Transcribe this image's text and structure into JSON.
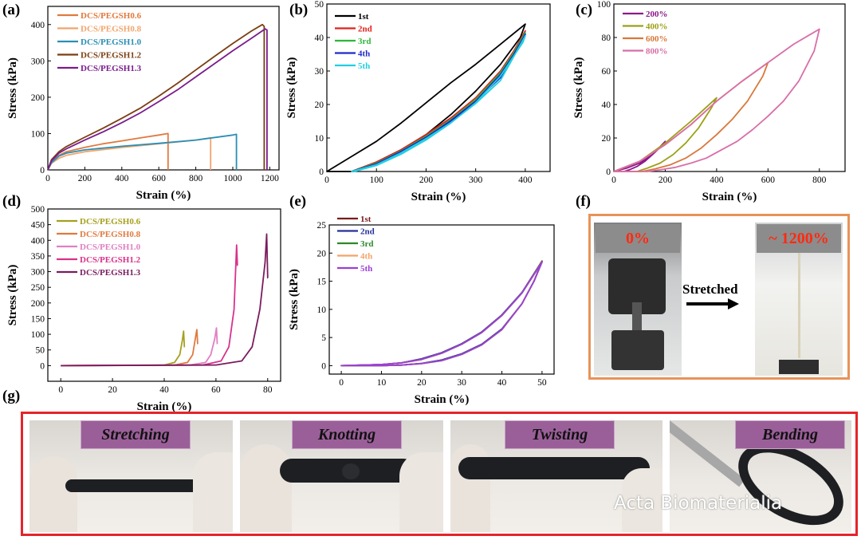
{
  "panel_labels": {
    "a": "(a)",
    "b": "(b)",
    "c": "(c)",
    "d": "(d)",
    "e": "(e)",
    "f": "(f)",
    "g": "(g)"
  },
  "colors": {
    "peg06_a": "#E07A3F",
    "peg08_a": "#F2A46B",
    "peg10_a": "#2A8FB5",
    "peg12_a": "#7B3F12",
    "peg13_a": "#7A1C8C",
    "peg06_d": "#A6A01E",
    "peg08_d": "#E07A3F",
    "peg10_d": "#E07FC2",
    "peg12_d": "#D8328A",
    "peg13_d": "#7A1C5E",
    "c1": "#000000",
    "c2": "#E0211B",
    "c3": "#2DB83A",
    "c4": "#1F2BC9",
    "c5": "#22CFE0",
    "e1": "#7B1A1A",
    "e2": "#24309A",
    "e3": "#2A8A2A",
    "e4": "#F2A46B",
    "e5": "#9B3FD6",
    "s200": "#8B1A8B",
    "s400": "#9BA018",
    "s600": "#D8783A",
    "s800": "#D86FA8",
    "f_border": "#E8935A",
    "g_border": "#e5242a",
    "g_tag": "#9a5f99"
  },
  "chart_data": [
    {
      "id": "a",
      "type": "line",
      "title": "",
      "xlabel": "Strain (%)",
      "ylabel": "Stress (kPa)",
      "xlim": [
        0,
        1250
      ],
      "ylim": [
        0,
        450
      ],
      "xticks": [
        0,
        200,
        400,
        600,
        800,
        1000,
        1200
      ],
      "yticks": [
        0,
        100,
        200,
        300,
        400
      ],
      "legend_position": "top-left",
      "series": [
        {
          "name": "DCS/PEGSH0.6",
          "color_key": "peg06_a",
          "x": [
            0,
            20,
            60,
            100,
            200,
            300,
            400,
            500,
            600,
            650,
            650
          ],
          "y": [
            0,
            22,
            40,
            50,
            62,
            72,
            80,
            88,
            96,
            100,
            0
          ]
        },
        {
          "name": "DCS/PEGSH0.8",
          "color_key": "peg08_a",
          "x": [
            0,
            20,
            60,
            100,
            200,
            400,
            600,
            800,
            880,
            880
          ],
          "y": [
            0,
            18,
            32,
            40,
            50,
            62,
            72,
            82,
            88,
            0
          ]
        },
        {
          "name": "DCS/PEGSH1.0",
          "color_key": "peg10_a",
          "x": [
            0,
            20,
            60,
            100,
            200,
            400,
            600,
            800,
            1000,
            1020,
            1020
          ],
          "y": [
            0,
            20,
            38,
            46,
            55,
            65,
            73,
            82,
            96,
            98,
            0
          ]
        },
        {
          "name": "DCS/PEGSH1.2",
          "color_key": "peg12_a",
          "x": [
            0,
            20,
            60,
            100,
            200,
            300,
            400,
            500,
            600,
            700,
            800,
            900,
            1000,
            1100,
            1160,
            1170,
            1170
          ],
          "y": [
            0,
            28,
            50,
            64,
            90,
            115,
            142,
            170,
            203,
            238,
            275,
            312,
            348,
            382,
            400,
            395,
            0
          ]
        },
        {
          "name": "DCS/PEGSH1.3",
          "color_key": "peg13_a",
          "x": [
            0,
            20,
            60,
            100,
            200,
            300,
            400,
            500,
            600,
            700,
            800,
            900,
            1000,
            1100,
            1175,
            1185,
            1185
          ],
          "y": [
            0,
            25,
            46,
            58,
            82,
            105,
            130,
            157,
            188,
            220,
            256,
            292,
            328,
            362,
            388,
            385,
            0
          ]
        }
      ]
    },
    {
      "id": "b",
      "type": "line",
      "title": "",
      "xlabel": "Strain (%)",
      "ylabel": "Stress (kPa)",
      "xlim": [
        0,
        450
      ],
      "ylim": [
        0,
        50
      ],
      "xticks": [
        0,
        100,
        200,
        300,
        400
      ],
      "yticks": [
        0,
        10,
        20,
        30,
        40,
        50
      ],
      "legend_position": "top-left",
      "series": [
        {
          "name": "1st",
          "color_key": "c1",
          "x": [
            0,
            50,
            100,
            150,
            200,
            250,
            300,
            350,
            400,
            390,
            350,
            300,
            250,
            200,
            150,
            100,
            50
          ],
          "y": [
            0,
            4.5,
            9,
            14.5,
            20.5,
            26.5,
            32,
            38,
            44,
            40,
            32,
            24,
            17,
            11,
            6.5,
            2.8,
            0
          ],
          "closed": true
        },
        {
          "name": "2nd",
          "color_key": "c2",
          "x": [
            50,
            100,
            150,
            200,
            250,
            300,
            350,
            400,
            395,
            350,
            300,
            250,
            200,
            150,
            100,
            55
          ],
          "y": [
            0,
            2.8,
            6.5,
            11,
            16,
            22,
            29,
            42,
            40,
            30,
            22,
            16,
            10.5,
            6,
            2.5,
            0
          ],
          "closed": true
        },
        {
          "name": "3rd",
          "color_key": "c3",
          "x": [
            50,
            100,
            150,
            200,
            250,
            300,
            350,
            400,
            395,
            350,
            300,
            250,
            200,
            150,
            100,
            55
          ],
          "y": [
            0,
            2.5,
            6.2,
            10.5,
            15.5,
            21.5,
            28.5,
            41.5,
            39.5,
            29.5,
            21.5,
            15.5,
            10,
            5.8,
            2.3,
            0
          ],
          "closed": true
        },
        {
          "name": "4th",
          "color_key": "c4",
          "x": [
            50,
            100,
            150,
            200,
            250,
            300,
            350,
            400,
            395,
            350,
            300,
            250,
            200,
            150,
            100,
            55
          ],
          "y": [
            0,
            2.3,
            6,
            10.2,
            15.2,
            21,
            28,
            41,
            39,
            29,
            21,
            15,
            9.8,
            5.6,
            2.1,
            0
          ],
          "closed": true
        },
        {
          "name": "5th",
          "color_key": "c5",
          "x": [
            50,
            100,
            150,
            200,
            250,
            300,
            350,
            400,
            395,
            350,
            300,
            250,
            200,
            150,
            100,
            55
          ],
          "y": [
            0,
            2,
            5.6,
            9.8,
            14.6,
            20.3,
            27.2,
            40.5,
            38.5,
            28.5,
            20.5,
            14.5,
            9.4,
            5.2,
            1.8,
            0
          ],
          "closed": true
        }
      ]
    },
    {
      "id": "c",
      "type": "line",
      "title": "",
      "xlabel": "Strain (%)",
      "ylabel": "Stress (kPa)",
      "xlim": [
        0,
        900
      ],
      "ylim": [
        0,
        100
      ],
      "xticks": [
        0,
        200,
        400,
        600,
        800
      ],
      "yticks": [
        0,
        20,
        40,
        60,
        80,
        100
      ],
      "legend_position": "top-left",
      "series": [
        {
          "name": "200%",
          "color_key": "s200",
          "x": [
            0,
            50,
            100,
            150,
            200,
            185,
            150,
            120,
            90,
            60,
            40
          ],
          "y": [
            0,
            2,
            5,
            10,
            18,
            15,
            10,
            6,
            3,
            1,
            0
          ],
          "closed": true
        },
        {
          "name": "400%",
          "color_key": "s400",
          "x": [
            0,
            100,
            200,
            300,
            400,
            380,
            330,
            280,
            230,
            180,
            130,
            90
          ],
          "y": [
            0,
            6,
            17,
            30,
            44,
            38,
            26,
            17,
            10,
            5,
            2,
            0
          ],
          "closed": true
        },
        {
          "name": "600%",
          "color_key": "s600",
          "x": [
            0,
            100,
            200,
            300,
            400,
            500,
            600,
            580,
            520,
            460,
            400,
            340,
            280,
            220,
            160,
            110
          ],
          "y": [
            0,
            6,
            16,
            28,
            42,
            54,
            65,
            57,
            42,
            31,
            22,
            14,
            8,
            4,
            1.5,
            0
          ],
          "closed": true
        },
        {
          "name": "800%",
          "color_key": "s800",
          "x": [
            0,
            100,
            200,
            300,
            400,
            500,
            600,
            700,
            800,
            780,
            720,
            660,
            600,
            540,
            480,
            420,
            360,
            300,
            240,
            180,
            130
          ],
          "y": [
            0,
            6,
            16,
            28,
            42,
            54,
            65,
            76,
            85,
            72,
            54,
            42,
            33,
            25,
            18,
            13,
            8,
            5,
            2.5,
            1,
            0
          ],
          "closed": true
        }
      ]
    },
    {
      "id": "d",
      "type": "line",
      "title": "",
      "xlabel": "Strain (%)",
      "ylabel": "Stress (kPa)",
      "xlim": [
        -5,
        85
      ],
      "ylim": [
        -50,
        500
      ],
      "xticks": [
        0,
        20,
        40,
        60,
        80
      ],
      "yticks": [
        0,
        50,
        100,
        150,
        200,
        250,
        300,
        350,
        400,
        450,
        500
      ],
      "legend_position": "top-left",
      "series": [
        {
          "name": "DCS/PEGSH0.6",
          "color_key": "peg06_d",
          "x": [
            0,
            40,
            44,
            46,
            47,
            47.5,
            47.8,
            47.9
          ],
          "y": [
            0,
            2,
            10,
            35,
            80,
            110,
            60,
            60
          ]
        },
        {
          "name": "DCS/PEGSH0.8",
          "color_key": "peg08_d",
          "x": [
            0,
            44,
            49,
            51,
            52,
            52.6,
            52.9,
            53
          ],
          "y": [
            0,
            2,
            10,
            35,
            85,
            115,
            70,
            70
          ]
        },
        {
          "name": "DCS/PEGSH1.0",
          "color_key": "peg10_d",
          "x": [
            0,
            50,
            56,
            58,
            59.5,
            60.2,
            60.5,
            60.6
          ],
          "y": [
            0,
            2,
            10,
            35,
            85,
            120,
            70,
            70
          ]
        },
        {
          "name": "DCS/PEGSH1.2",
          "color_key": "peg12_d",
          "x": [
            0,
            55,
            62,
            65,
            67,
            68,
            68.3,
            68.4
          ],
          "y": [
            0,
            2,
            15,
            60,
            180,
            385,
            320,
            320
          ]
        },
        {
          "name": "DCS/PEGSH1.3",
          "color_key": "peg13_d",
          "x": [
            0,
            60,
            70,
            74,
            77,
            79,
            79.6,
            80,
            80.1
          ],
          "y": [
            0,
            2,
            15,
            60,
            180,
            330,
            420,
            280,
            280
          ]
        }
      ]
    },
    {
      "id": "e",
      "type": "line",
      "title": "",
      "xlabel": "Strain (%)",
      "ylabel": "Stress (kPa)",
      "xlim": [
        -3,
        53
      ],
      "ylim": [
        -1.5,
        25
      ],
      "xticks": [
        0,
        10,
        20,
        30,
        40,
        50
      ],
      "yticks": [
        0,
        5,
        10,
        15,
        20,
        25
      ],
      "legend_position": "top-left",
      "series": [
        {
          "name": "1st",
          "color_key": "e1",
          "x": [
            0,
            10,
            15,
            20,
            25,
            30,
            35,
            40,
            45,
            50,
            48,
            45,
            40,
            35,
            30,
            25,
            20,
            15,
            10,
            0
          ],
          "y": [
            0,
            0.2,
            0.5,
            1.2,
            2.3,
            3.9,
            6,
            9,
            13,
            18.6,
            15,
            11,
            6.5,
            3.8,
            2.1,
            1,
            0.4,
            0.1,
            0,
            0
          ],
          "closed": true
        },
        {
          "name": "2nd",
          "color_key": "e2",
          "x": [
            0,
            10,
            15,
            20,
            25,
            30,
            35,
            40,
            45,
            50,
            48,
            45,
            40,
            35,
            30,
            25,
            20,
            15,
            10,
            0
          ],
          "y": [
            0,
            0.2,
            0.5,
            1.2,
            2.3,
            3.9,
            6,
            9,
            13,
            18.5,
            15,
            11,
            6.5,
            3.8,
            2.1,
            1,
            0.4,
            0.1,
            0,
            0
          ],
          "closed": true
        },
        {
          "name": "3rd",
          "color_key": "e3",
          "x": [
            0,
            10,
            15,
            20,
            25,
            30,
            35,
            40,
            45,
            50,
            48,
            45,
            40,
            35,
            30,
            25,
            20,
            15,
            10,
            0
          ],
          "y": [
            0,
            0.2,
            0.5,
            1.1,
            2.2,
            3.8,
            5.9,
            8.9,
            12.9,
            18.5,
            15,
            11,
            6.4,
            3.7,
            2,
            0.9,
            0.35,
            0.1,
            0,
            0
          ],
          "closed": true
        },
        {
          "name": "4th",
          "color_key": "e4",
          "x": [
            0,
            10,
            15,
            20,
            25,
            30,
            35,
            40,
            45,
            50,
            48,
            45,
            40,
            35,
            30,
            25,
            20,
            15,
            10,
            0
          ],
          "y": [
            0,
            0.2,
            0.5,
            1.1,
            2.2,
            3.8,
            5.9,
            8.9,
            12.9,
            18.4,
            15,
            11,
            6.4,
            3.7,
            2,
            0.9,
            0.35,
            0.1,
            0,
            0
          ],
          "closed": true
        },
        {
          "name": "5th",
          "color_key": "e5",
          "x": [
            0,
            10,
            15,
            20,
            25,
            30,
            35,
            40,
            45,
            50,
            48,
            45,
            40,
            35,
            30,
            25,
            20,
            15,
            10,
            0
          ],
          "y": [
            0,
            0.2,
            0.5,
            1.1,
            2.2,
            3.8,
            5.9,
            8.9,
            12.9,
            18.4,
            15,
            11,
            6.4,
            3.7,
            2,
            0.9,
            0.35,
            0.1,
            0,
            0
          ],
          "closed": true
        }
      ]
    }
  ],
  "panel_f": {
    "left_label": "0%",
    "right_label": "~ 1200%",
    "arrow_label": "Stretched"
  },
  "panel_g": {
    "labels": [
      "Stretching",
      "Knotting",
      "Twisting",
      "Bending"
    ]
  },
  "watermark": "Acta Biomaterialia"
}
